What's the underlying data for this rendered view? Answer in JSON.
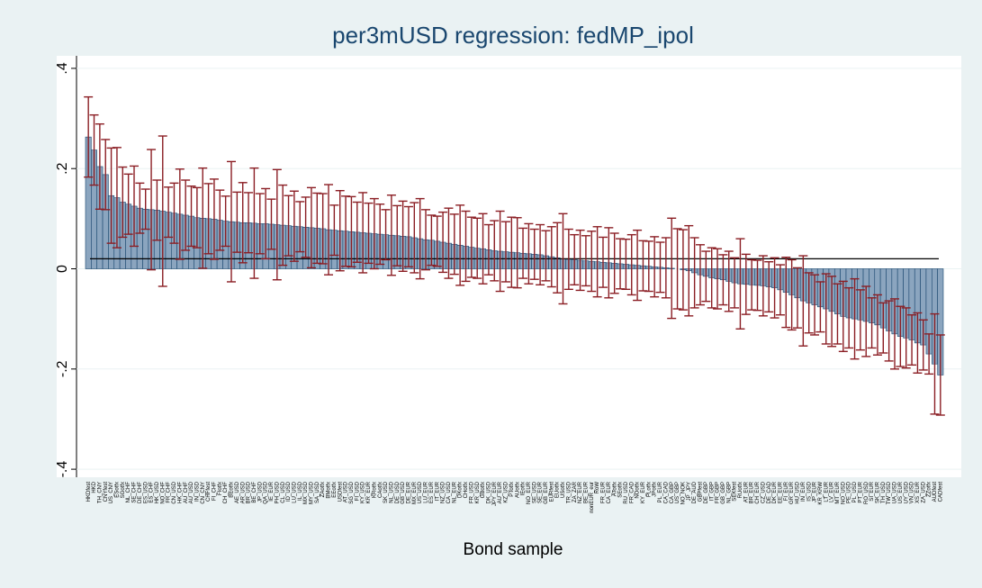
{
  "chart_data": {
    "type": "bar",
    "title": "per3mUSD regression: fedMP_ipol",
    "x_label": "Bond sample",
    "categories": [
      "HKDfest",
      "HKD",
      "TH_CNY",
      "CNYfest",
      "US_CNY",
      "ESotfx",
      "SGotfx",
      "NL_CHF",
      "SE_CHF",
      "DE_CHF",
      "ES_USD",
      "ES_CHF",
      "HK_USD",
      "NO_CHF",
      "FR_CHF",
      "CN_USD",
      "HK_CHF",
      "AU_CHF",
      "AU_USD",
      "IN_USD",
      "CN_CNY",
      "CHFfest",
      "FI_CHF",
      "FIotfx",
      "CH_CHF",
      "BEotfx",
      "AE_USD",
      "AR_USD",
      "BR_USD",
      "BE_CHF",
      "JP_USD",
      "QA_USD",
      "IE_EUR",
      "PH_USD",
      "CL_USD",
      "ID_USD",
      "LU_USD",
      "IL_USD",
      "MX_USD",
      "MY_USD",
      "SA_USD",
      "ZAotfx",
      "BMotfx",
      "EEotfx",
      "USDfest",
      "AT_USD",
      "SG_USD",
      "FI_USD",
      "KY_USD",
      "KR_EUR",
      "KRotfx",
      "CAotfx",
      "SK_USD",
      "NL_USD",
      "DE_USD",
      "GB_USD",
      "DE_EUR",
      "MX_EUR",
      "US_USD",
      "LU_EUR",
      "ES_EUR",
      "IT_EUR",
      "NZ_USD",
      "CA_USD",
      "NL_EUR",
      "DKotfx",
      "CHotfx",
      "FR_USD",
      "KR_USD",
      "GBotfx",
      "DK_USD",
      "JPY_EUR",
      "AU_EUR",
      "KZ_USD",
      "PTotfx",
      "AUotfx",
      "IEotfx",
      "NO_EUR",
      "SE_USD",
      "SE_EUR",
      "GB_EUR",
      "EURfest",
      "EUotfx",
      "USotfx",
      "TR_USD",
      "ZA_ZAR",
      "NZ_EUR",
      "BE_EUR",
      "nonEUR_eur",
      "RoW",
      "FR_EUR",
      "CA_EUR",
      "ATotfx",
      "SEotfx",
      "RU_USD",
      "FR_CAD",
      "NOotfx",
      "KY_EUR",
      "PLotfx",
      "JPotfx",
      "PL_EUR",
      "CA_CAD",
      "CA_GBP",
      "US_GBP",
      "NO_NOK",
      "JP_JPY",
      "DE_AUD",
      "GBPfest",
      "DE_GBP",
      "IT_GBP",
      "FR_GBP",
      "GB_GBP",
      "NL_GBP",
      "SEKfest",
      "RUotfx",
      "AT_EUR",
      "BR_EUR",
      "CH_EUR",
      "CZ_USD",
      "DE_CAD",
      "DK_EUR",
      "EE_EUR",
      "FI_EUR",
      "GR_EUR",
      "HU_USD",
      "IN_EUR",
      "IS_USD",
      "JP_EUR",
      "KR_KRW",
      "LT_EUR",
      "LV_EUR",
      "MT_EUR",
      "NO_USD",
      "PE_USD",
      "PL_USD",
      "PT_EUR",
      "RO_USD",
      "SI_EUR",
      "SK_EUR",
      "TH_USD",
      "TW_USD",
      "UA_USD",
      "US_EUR",
      "UY_USD",
      "VN_USD",
      "XS_EUR",
      "ZA_USD",
      "ZZotfx",
      "AUDfest",
      "CADfest"
    ],
    "values": [
      0.263,
      0.237,
      0.204,
      0.188,
      0.146,
      0.142,
      0.133,
      0.129,
      0.125,
      0.121,
      0.119,
      0.118,
      0.117,
      0.115,
      0.113,
      0.111,
      0.109,
      0.107,
      0.105,
      0.102,
      0.101,
      0.1,
      0.099,
      0.097,
      0.095,
      0.094,
      0.093,
      0.092,
      0.092,
      0.091,
      0.09,
      0.09,
      0.089,
      0.088,
      0.087,
      0.086,
      0.085,
      0.084,
      0.083,
      0.082,
      0.081,
      0.08,
      0.078,
      0.077,
      0.076,
      0.075,
      0.074,
      0.073,
      0.072,
      0.071,
      0.07,
      0.069,
      0.068,
      0.067,
      0.066,
      0.065,
      0.064,
      0.062,
      0.06,
      0.058,
      0.057,
      0.055,
      0.053,
      0.051,
      0.049,
      0.047,
      0.045,
      0.043,
      0.041,
      0.04,
      0.038,
      0.036,
      0.035,
      0.034,
      0.033,
      0.032,
      0.031,
      0.03,
      0.029,
      0.028,
      0.026,
      0.024,
      0.022,
      0.02,
      0.019,
      0.018,
      0.017,
      0.016,
      0.015,
      0.014,
      0.013,
      0.012,
      0.011,
      0.01,
      0.009,
      0.008,
      0.007,
      0.006,
      0.005,
      0.004,
      0.003,
      0.002,
      0.001,
      0,
      -0.002,
      -0.004,
      -0.008,
      -0.012,
      -0.015,
      -0.018,
      -0.02,
      -0.022,
      -0.025,
      -0.028,
      -0.03,
      -0.031,
      -0.032,
      -0.033,
      -0.034,
      -0.036,
      -0.038,
      -0.042,
      -0.047,
      -0.052,
      -0.058,
      -0.064,
      -0.068,
      -0.072,
      -0.076,
      -0.08,
      -0.085,
      -0.09,
      -0.095,
      -0.098,
      -0.1,
      -0.102,
      -0.105,
      -0.108,
      -0.112,
      -0.118,
      -0.124,
      -0.13,
      -0.135,
      -0.138,
      -0.142,
      -0.148,
      -0.152,
      -0.17,
      -0.19,
      -0.212
    ],
    "errors": [
      0.08,
      0.07,
      0.085,
      0.07,
      0.095,
      0.1,
      0.07,
      0.06,
      0.08,
      0.05,
      0.04,
      0.12,
      0.06,
      0.15,
      0.05,
      0.06,
      0.09,
      0.07,
      0.06,
      0.06,
      0.1,
      0.07,
      0.08,
      0.06,
      0.05,
      0.12,
      0.06,
      0.08,
      0.06,
      0.11,
      0.06,
      0.07,
      0.05,
      0.11,
      0.08,
      0.06,
      0.07,
      0.05,
      0.06,
      0.08,
      0.07,
      0.07,
      0.09,
      0.05,
      0.08,
      0.07,
      0.07,
      0.06,
      0.08,
      0.06,
      0.07,
      0.06,
      0.05,
      0.08,
      0.06,
      0.07,
      0.06,
      0.07,
      0.08,
      0.06,
      0.05,
      0.05,
      0.06,
      0.07,
      0.06,
      0.08,
      0.07,
      0.06,
      0.06,
      0.07,
      0.05,
      0.06,
      0.08,
      0.06,
      0.07,
      0.07,
      0.05,
      0.06,
      0.05,
      0.06,
      0.05,
      0.06,
      0.07,
      0.09,
      0.06,
      0.05,
      0.06,
      0.05,
      0.06,
      0.07,
      0.05,
      0.07,
      0.06,
      0.05,
      0.05,
      0.06,
      0.07,
      0.05,
      0.05,
      0.06,
      0.05,
      0.06,
      0.1,
      0.08,
      0.08,
      0.09,
      0.07,
      0.06,
      0.05,
      0.06,
      0.06,
      0.05,
      0.06,
      0.05,
      0.09,
      0.06,
      0.05,
      0.05,
      0.06,
      0.05,
      0.06,
      0.05,
      0.07,
      0.07,
      0.06,
      0.09,
      0.06,
      0.06,
      0.05,
      0.07,
      0.07,
      0.06,
      0.07,
      0.06,
      0.08,
      0.06,
      0.07,
      0.05,
      0.06,
      0.05,
      0.06,
      0.07,
      0.06,
      0.06,
      0.05,
      0.06,
      0.05,
      0.04,
      0.1,
      0.08
    ],
    "color": "#8ba5bf",
    "error_color": "#8b1e24",
    "reference_line": 0.02,
    "ylim": [
      -0.416,
      0.425
    ],
    "yticks": [
      {
        "value": -0.4,
        "label": "-.4"
      },
      {
        "value": -0.2,
        "label": "-.2"
      },
      0,
      {
        "value": 0.2,
        "label": ".2"
      },
      {
        "value": 0.4,
        "label": ".4"
      }
    ],
    "grid": true
  }
}
